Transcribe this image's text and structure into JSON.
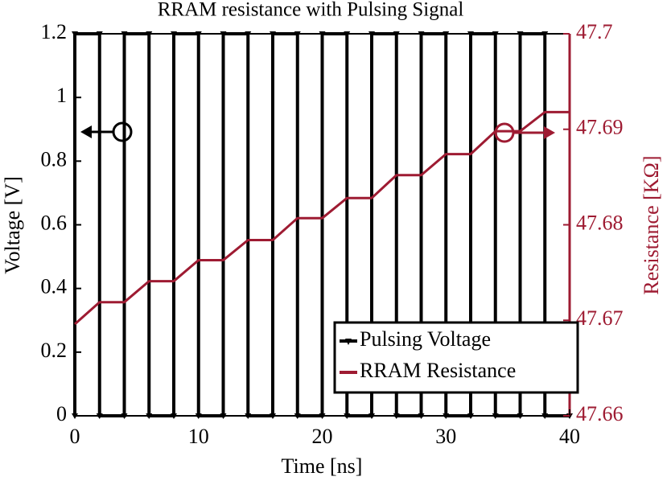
{
  "chart_data": {
    "type": "line",
    "title": "RRAM resistance with Pulsing Signal",
    "x_label": "Time [ns]",
    "y_label": "Voltage [V]",
    "y2_label": "Resistance [KΩ]",
    "xlim": [
      0,
      40
    ],
    "xticks": [
      0,
      10,
      20,
      30,
      40
    ],
    "ylim": [
      0,
      1.2
    ],
    "yticks": [
      0,
      0.2,
      0.4,
      0.6,
      0.8,
      1,
      1.2
    ],
    "y2lim": [
      47.66,
      47.7
    ],
    "y2ticks": [
      47.66,
      47.67,
      47.68,
      47.69,
      47.7
    ],
    "legend": "lower right",
    "series": [
      {
        "name": "Pulsing Voltage",
        "color": "#000000",
        "x": [
          0,
          0,
          2,
          2,
          4,
          4,
          6,
          6,
          8,
          8,
          10,
          10,
          12,
          12,
          14,
          14,
          16,
          16,
          18,
          18,
          20,
          20,
          22,
          22,
          24,
          24,
          26,
          26,
          28,
          28,
          30,
          30,
          32,
          32,
          34,
          34,
          36,
          36,
          38,
          38,
          40
        ],
        "values": [
          0,
          1.2,
          1.2,
          0,
          0,
          1.2,
          1.2,
          0,
          0,
          1.2,
          1.2,
          0,
          0,
          1.2,
          1.2,
          0,
          0,
          1.2,
          1.2,
          0,
          0,
          1.2,
          1.2,
          0,
          0,
          1.2,
          1.2,
          0,
          0,
          1.2,
          1.2,
          0,
          0,
          1.2,
          1.2,
          0,
          0,
          1.2,
          1.2,
          0,
          0
        ]
      },
      {
        "name": "RRAM Resistance",
        "color": "#9e1b32",
        "axis": "y2",
        "x": [
          0,
          2,
          4,
          6,
          8,
          10,
          12,
          14,
          16,
          18,
          20,
          22,
          24,
          26,
          28,
          30,
          32,
          34,
          36,
          38,
          40
        ],
        "values": [
          47.6696,
          47.6719,
          47.6719,
          47.6741,
          47.6741,
          47.6763,
          47.6763,
          47.6784,
          47.6784,
          47.6807,
          47.6807,
          47.6828,
          47.6828,
          47.6852,
          47.6852,
          47.6874,
          47.6874,
          47.6898,
          47.6898,
          47.6918,
          47.6918
        ]
      }
    ]
  }
}
